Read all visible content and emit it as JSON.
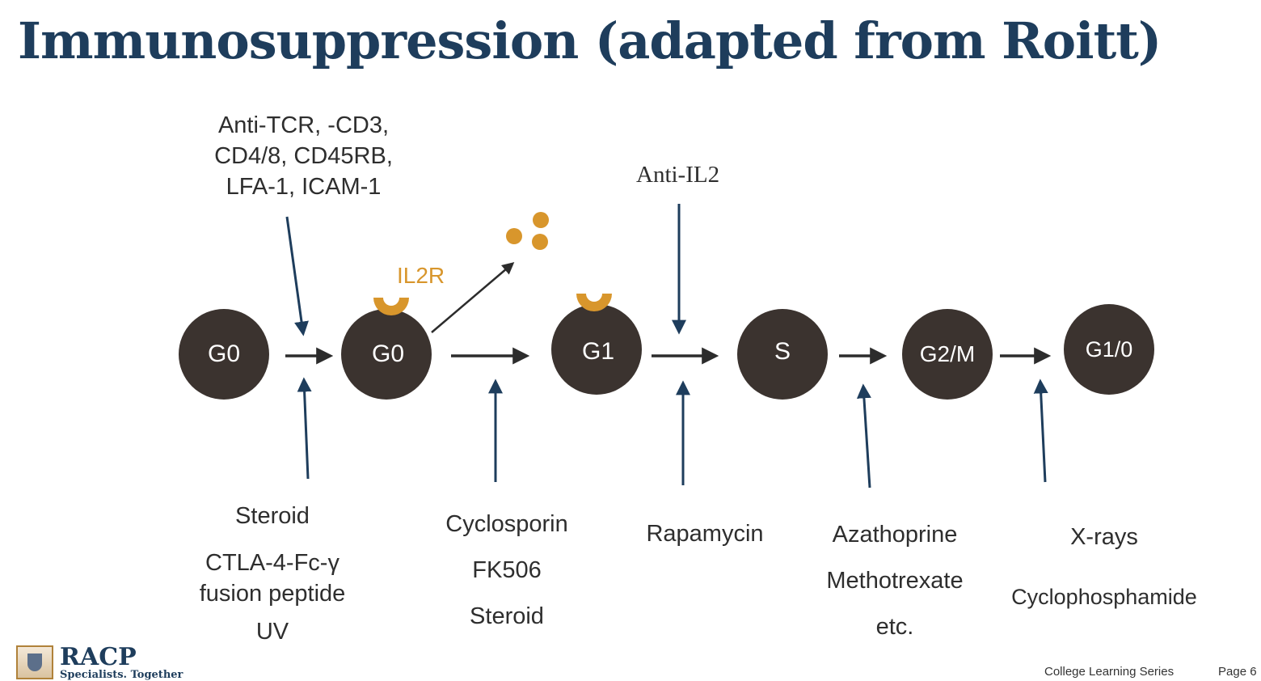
{
  "title": "Immunosuppression (adapted from Roitt)",
  "colors": {
    "title": "#1e3d5c",
    "cell": "#3b332f",
    "receptor": "#d8962c",
    "arrow": "#1e3d5c"
  },
  "nodes": [
    {
      "label": "G0"
    },
    {
      "label": "G0"
    },
    {
      "label": "G1"
    },
    {
      "label": "S"
    },
    {
      "label": "G2/M"
    },
    {
      "label": "G1/0"
    }
  ],
  "top_labels": {
    "anti_tcr": [
      "Anti-TCR, -CD3,",
      "CD4/8, CD45RB,",
      "LFA-1, ICAM-1"
    ],
    "anti_il2": "Anti-IL2",
    "il2r": "IL2R"
  },
  "bottom_labels": {
    "group1": [
      "Steroid",
      "CTLA-4-Fc-γ",
      "fusion peptide",
      "UV"
    ],
    "group2": [
      "Cyclosporin",
      "FK506",
      "Steroid"
    ],
    "group3": [
      "Rapamycin"
    ],
    "group4": [
      "Azathoprine",
      "Methotrexate",
      "etc."
    ],
    "group5": [
      "X-rays",
      "Cyclophosphamide"
    ]
  },
  "logo": {
    "name": "RACP",
    "tagline": "Specialists. Together",
    "icon": "crest-icon"
  },
  "footer": {
    "series": "College Learning Series",
    "page": "Page 6"
  }
}
